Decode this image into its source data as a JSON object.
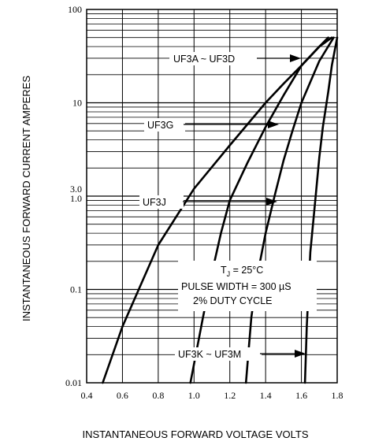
{
  "chart_data": {
    "type": "line",
    "xlabel": "INSTANTANEOUS FORWARD VOLTAGE VOLTS",
    "ylabel": "INSTANTANEOUS FORWARD CURRENT AMPERES",
    "x_scale": "linear",
    "y_scale": "log",
    "xlim": [
      0.4,
      1.8
    ],
    "ylim": [
      0.01,
      100
    ],
    "x_ticks": [
      {
        "v": 0.4,
        "label": "0.4"
      },
      {
        "v": 0.6,
        "label": "0.6"
      },
      {
        "v": 0.8,
        "label": "0.8"
      },
      {
        "v": 1.0,
        "label": "1.0"
      },
      {
        "v": 1.2,
        "label": "1.2"
      },
      {
        "v": 1.4,
        "label": "1.4"
      },
      {
        "v": 1.6,
        "label": "1.6"
      },
      {
        "v": 1.8,
        "label": "1.8"
      }
    ],
    "y_ticks": [
      {
        "v": 0.01,
        "label": "0.01"
      },
      {
        "v": 0.1,
        "label": "0.1"
      },
      {
        "v": 1.0,
        "label": "1.0"
      },
      {
        "v": 3.0,
        "label": "3.0"
      },
      {
        "v": 10,
        "label": "10"
      },
      {
        "v": 100,
        "label": "100"
      }
    ],
    "grid": true,
    "series": [
      {
        "name": "UF3A ~ UF3D",
        "x": [
          0.49,
          0.6,
          0.8,
          1.0,
          1.2,
          1.4,
          1.5,
          1.6,
          1.7,
          1.75
        ],
        "y": [
          0.01,
          0.04,
          0.3,
          1.2,
          3.5,
          10,
          16,
          25,
          40,
          50
        ]
      },
      {
        "name": "UF3G",
        "x": [
          0.98,
          1.05,
          1.1,
          1.15,
          1.2,
          1.3,
          1.4,
          1.5,
          1.6,
          1.7,
          1.77
        ],
        "y": [
          0.01,
          0.05,
          0.15,
          0.4,
          0.9,
          2.3,
          5.5,
          12,
          25,
          40,
          50
        ]
      },
      {
        "name": "UF3J",
        "x": [
          1.29,
          1.32,
          1.35,
          1.4,
          1.45,
          1.5,
          1.55,
          1.6,
          1.7,
          1.78
        ],
        "y": [
          0.01,
          0.05,
          0.13,
          0.4,
          1.0,
          2.4,
          5.0,
          10,
          28,
          50
        ]
      },
      {
        "name": "UF3K ~ UF3M",
        "x": [
          1.62,
          1.63,
          1.65,
          1.68,
          1.7,
          1.72,
          1.75,
          1.77,
          1.8
        ],
        "y": [
          0.01,
          0.04,
          0.25,
          1.0,
          2.6,
          5.5,
          13,
          25,
          50
        ]
      }
    ],
    "annotations": {
      "conditions": [
        "T",
        "J",
        " = 25°C",
        "PULSE WIDTH = 300 µS",
        "2% DUTY CYCLE"
      ]
    }
  }
}
